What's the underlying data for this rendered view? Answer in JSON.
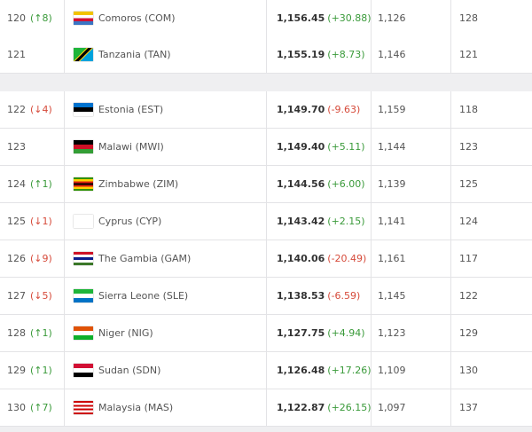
{
  "table": {
    "rows": [
      [
        "120",
        "(↑8)",
        "Comoros (COM)",
        "1,156.45",
        "(+30.88)",
        "1,126",
        "128"
      ],
      [
        "121",
        "",
        "Tanzania (TAN)",
        "1,155.19",
        "(+8.73)",
        "1,146",
        "121"
      ],
      [
        "122",
        "(↓4)",
        "Estonia (EST)",
        "1,149.70",
        "(-9.63)",
        "1,159",
        "118"
      ],
      [
        "123",
        "",
        "Malawi (MWI)",
        "1,149.40",
        "(+5.11)",
        "1,144",
        "123"
      ],
      [
        "124",
        "(↑1)",
        "Zimbabwe (ZIM)",
        "1,144.56",
        "(+6.00)",
        "1,139",
        "125"
      ],
      [
        "125",
        "(↓1)",
        "Cyprus (CYP)",
        "1,143.42",
        "(+2.15)",
        "1,141",
        "124"
      ],
      [
        "126",
        "(↓9)",
        "The Gambia (GAM)",
        "1,140.06",
        "(-20.49)",
        "1,161",
        "117"
      ],
      [
        "127",
        "(↓5)",
        "Sierra Leone (SLE)",
        "1,138.53",
        "(-6.59)",
        "1,145",
        "122"
      ],
      [
        "128",
        "(↑1)",
        "Niger (NIG)",
        "1,127.75",
        "(+4.94)",
        "1,123",
        "129"
      ],
      [
        "129",
        "(↑1)",
        "Sudan (SDN)",
        "1,126.48",
        "(+17.26)",
        "1,109",
        "130"
      ],
      [
        "130",
        "(↑7)",
        "Malaysia (MAS)",
        "1,122.87",
        "(+26.15)",
        "1,097",
        "137"
      ]
    ]
  }
}
